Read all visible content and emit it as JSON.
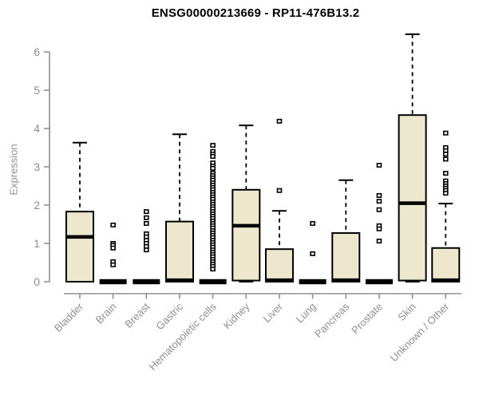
{
  "title": "ENSG00000213669 - RP11-476B13.2",
  "colors": {
    "box_fill": "#ede8cd",
    "box_stroke": "#000000",
    "median": "#000000",
    "whisker": "#000000",
    "axis": "#8f8f8f",
    "tick_label": "#8f8f8f",
    "title": "#000000",
    "background": "#ffffff"
  },
  "chart_data": {
    "type": "boxplot",
    "title": "ENSG00000213669 - RP11-476B13.2",
    "xlabel": "",
    "ylabel": "Expression",
    "ylim": [
      0,
      6.5
    ],
    "yticks": [
      0,
      1,
      2,
      3,
      4,
      5,
      6
    ],
    "grid": false,
    "legend": "none",
    "categories": [
      "Bladder",
      "Brain",
      "Breast",
      "Gastric",
      "Hematopoietic cells",
      "Kidney",
      "Liver",
      "Lung",
      "Pancreas",
      "Prostate",
      "Skin",
      "Unknown / Other"
    ],
    "series": [
      {
        "name": "Bladder",
        "whisker_low": 0,
        "q1": 0,
        "median": 1.17,
        "q3": 1.83,
        "whisker_high": 3.63,
        "outliers": []
      },
      {
        "name": "Brain",
        "whisker_low": 0,
        "q1": 0,
        "median": 0,
        "q3": 0,
        "whisker_high": 0,
        "outliers": [
          1.48,
          1.0,
          0.95,
          0.88,
          0.52,
          0.44
        ]
      },
      {
        "name": "Breast",
        "whisker_low": 0,
        "q1": 0,
        "median": 0,
        "q3": 0,
        "whisker_high": 0,
        "outliers": [
          1.83,
          1.67,
          1.52,
          1.25,
          1.17,
          1.08,
          1.0,
          0.92,
          0.83
        ]
      },
      {
        "name": "Gastric",
        "whisker_low": 0,
        "q1": 0,
        "median": 0.04,
        "q3": 1.57,
        "whisker_high": 3.85,
        "outliers": []
      },
      {
        "name": "Hematopoietic cells",
        "whisker_low": 0,
        "q1": 0,
        "median": 0,
        "q3": 0,
        "whisker_high": 0,
        "outliers": [
          3.56,
          3.4,
          3.33,
          3.27,
          3.1,
          3.02,
          2.96,
          2.83,
          2.77,
          2.71,
          2.65,
          2.58,
          2.52,
          2.46,
          2.4,
          2.33,
          2.27,
          2.21,
          2.15,
          2.08,
          2.02,
          1.96,
          1.9,
          1.83,
          1.77,
          1.71,
          1.65,
          1.58,
          1.52,
          1.46,
          1.4,
          1.33,
          1.27,
          1.21,
          1.15,
          1.08,
          1.02,
          0.96,
          0.9,
          0.83,
          0.77,
          0.71,
          0.65,
          0.58,
          0.52,
          0.46,
          0.4,
          0.33
        ]
      },
      {
        "name": "Kidney",
        "whisker_low": 0,
        "q1": 0.03,
        "median": 1.46,
        "q3": 2.4,
        "whisker_high": 4.08,
        "outliers": []
      },
      {
        "name": "Liver",
        "whisker_low": 0,
        "q1": 0,
        "median": 0.04,
        "q3": 0.85,
        "whisker_high": 1.85,
        "outliers": [
          4.19,
          2.38
        ]
      },
      {
        "name": "Lung",
        "whisker_low": 0,
        "q1": 0,
        "median": 0,
        "q3": 0,
        "whisker_high": 0,
        "outliers": [
          1.52,
          0.73
        ]
      },
      {
        "name": "Pancreas",
        "whisker_low": 0,
        "q1": 0,
        "median": 0.04,
        "q3": 1.27,
        "whisker_high": 2.65,
        "outliers": []
      },
      {
        "name": "Prostate",
        "whisker_low": 0,
        "q1": 0,
        "median": 0,
        "q3": 0,
        "whisker_high": 0,
        "outliers": [
          3.04,
          2.25,
          2.1,
          1.88,
          1.46,
          1.38,
          1.06
        ]
      },
      {
        "name": "Skin",
        "whisker_low": 0,
        "q1": 0.03,
        "median": 2.05,
        "q3": 4.35,
        "whisker_high": 6.46,
        "outliers": []
      },
      {
        "name": "Unknown / Other",
        "whisker_low": 0,
        "q1": 0,
        "median": 0.04,
        "q3": 0.88,
        "whisker_high": 2.04,
        "outliers": [
          3.88,
          3.5,
          3.42,
          3.33,
          3.2,
          2.83,
          2.63,
          2.56,
          2.5,
          2.44,
          2.38,
          2.31
        ]
      }
    ]
  }
}
